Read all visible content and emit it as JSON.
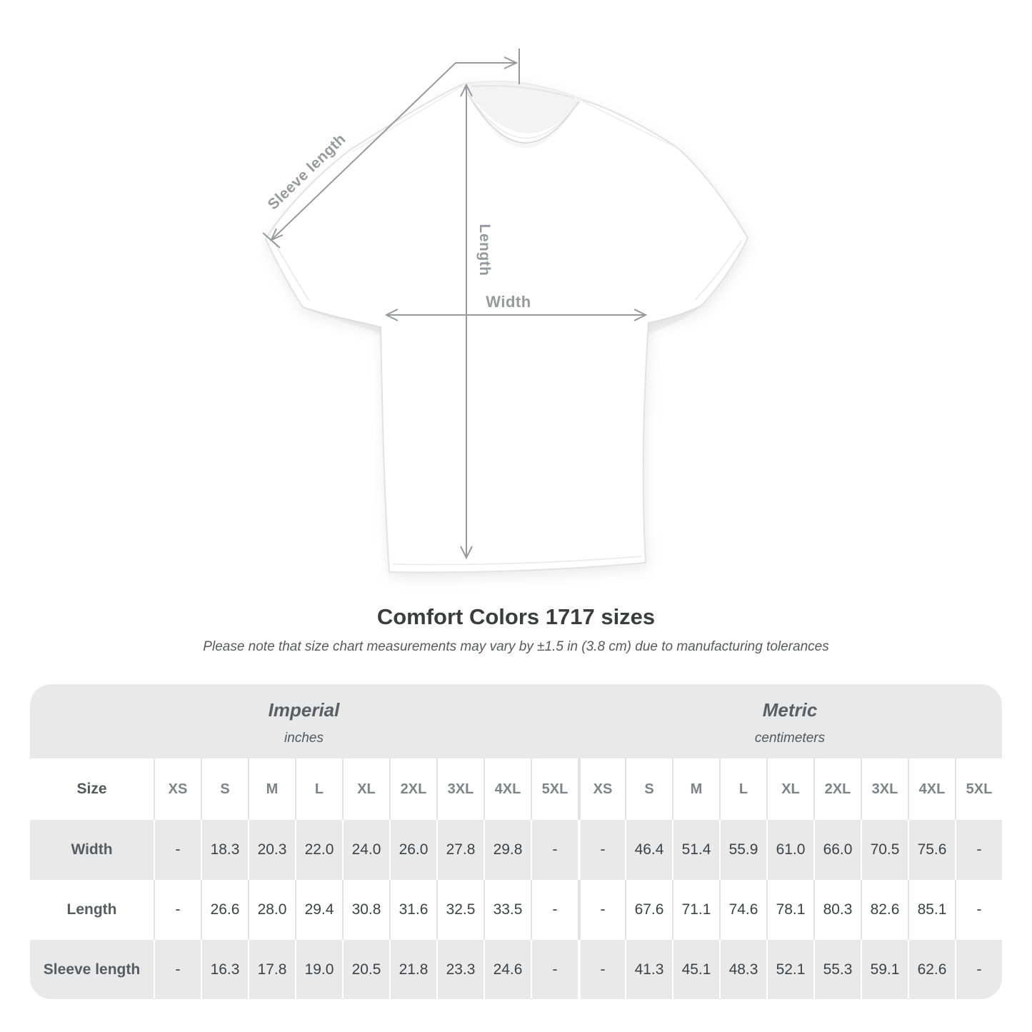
{
  "diagram": {
    "labels": {
      "sleeve_length": "Sleeve length",
      "length": "Length",
      "width": "Width"
    },
    "line_color": "#97999c"
  },
  "heading": {
    "title": "Comfort Colors 1717 sizes",
    "note": "Please note that size chart measurements may vary by ±1.5 in (3.8 cm) due to manufacturing tolerances"
  },
  "size_table": {
    "size_label": "Size",
    "unit_groups": [
      {
        "name": "Imperial",
        "unit": "inches"
      },
      {
        "name": "Metric",
        "unit": "centimeters"
      }
    ],
    "sizes": [
      "XS",
      "S",
      "M",
      "L",
      "XL",
      "2XL",
      "3XL",
      "4XL",
      "5XL"
    ],
    "rows": [
      {
        "label": "Width",
        "imperial": [
          "-",
          "18.3",
          "20.3",
          "22.0",
          "24.0",
          "26.0",
          "27.8",
          "29.8",
          "-"
        ],
        "metric": [
          "-",
          "46.4",
          "51.4",
          "55.9",
          "61.0",
          "66.0",
          "70.5",
          "75.6",
          "-"
        ]
      },
      {
        "label": "Length",
        "imperial": [
          "-",
          "26.6",
          "28.0",
          "29.4",
          "30.8",
          "31.6",
          "32.5",
          "33.5",
          "-"
        ],
        "metric": [
          "-",
          "67.6",
          "71.1",
          "74.6",
          "78.1",
          "80.3",
          "82.6",
          "85.1",
          "-"
        ]
      },
      {
        "label": "Sleeve length",
        "imperial": [
          "-",
          "16.3",
          "17.8",
          "19.0",
          "20.5",
          "21.8",
          "23.3",
          "24.6",
          "-"
        ],
        "metric": [
          "-",
          "41.3",
          "45.1",
          "48.3",
          "52.1",
          "55.3",
          "59.1",
          "62.6",
          "-"
        ]
      }
    ],
    "colors": {
      "band": "#e9e9e9",
      "alt_row": "#e9e9e9",
      "separator": "#e3e3e3"
    }
  }
}
